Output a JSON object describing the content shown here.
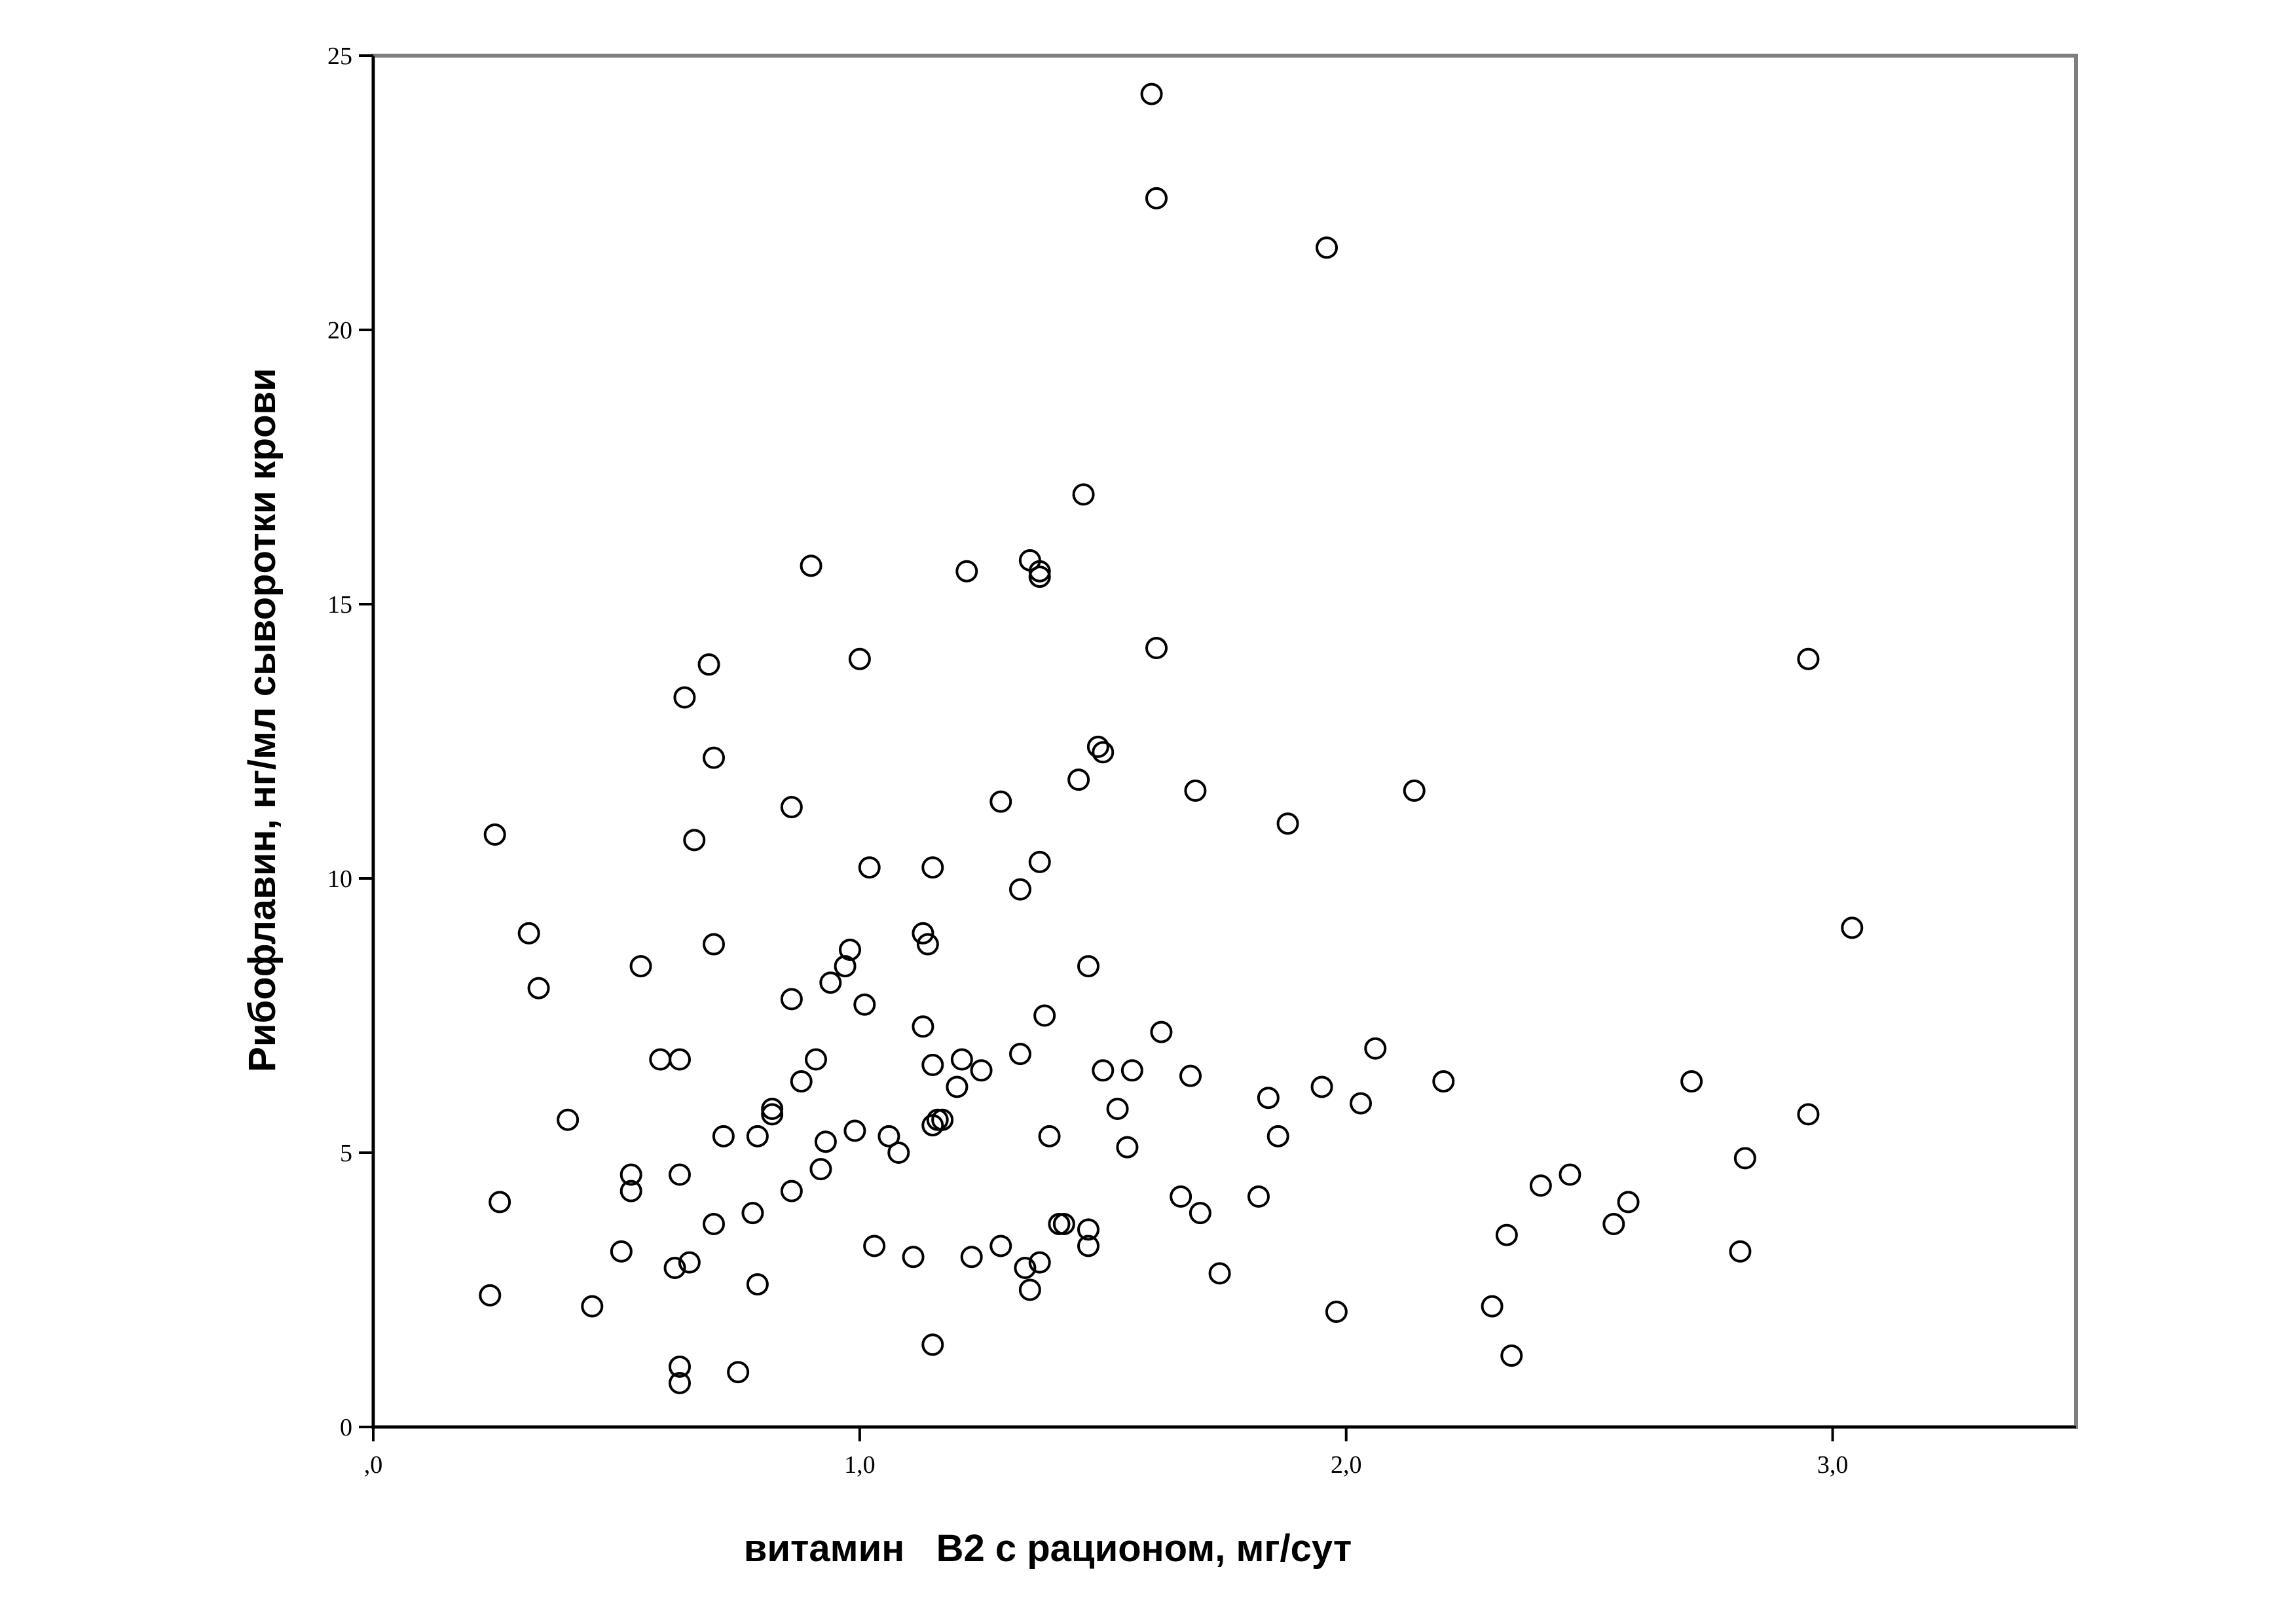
{
  "chart_data": {
    "type": "scatter",
    "title": "",
    "xlabel": "витамин   B2 с рационом, мг/сут",
    "ylabel": "Рибофлавин, нг/мл сыворотки крови",
    "xlim": [
      0,
      3.5
    ],
    "ylim": [
      0,
      25
    ],
    "xticks": [
      0,
      1,
      2,
      3
    ],
    "xtick_labels": [
      ",0",
      "1,0",
      "2,0",
      "3,0"
    ],
    "yticks": [
      0,
      5,
      10,
      15,
      20,
      25
    ],
    "ytick_labels": [
      "0",
      "5",
      "10",
      "15",
      "20",
      "25"
    ],
    "grid": false,
    "legend": "none",
    "marker": "open-circle",
    "points": [
      [
        1.6,
        24.3
      ],
      [
        1.61,
        22.4
      ],
      [
        1.96,
        21.5
      ],
      [
        1.46,
        17.0
      ],
      [
        0.9,
        15.7
      ],
      [
        1.22,
        15.6
      ],
      [
        1.35,
        15.8
      ],
      [
        1.37,
        15.6
      ],
      [
        1.37,
        15.5
      ],
      [
        1.61,
        14.2
      ],
      [
        2.95,
        14.0
      ],
      [
        1.0,
        14.0
      ],
      [
        0.69,
        13.9
      ],
      [
        0.64,
        13.3
      ],
      [
        1.49,
        12.4
      ],
      [
        1.5,
        12.3
      ],
      [
        0.7,
        12.2
      ],
      [
        1.45,
        11.8
      ],
      [
        1.69,
        11.6
      ],
      [
        2.14,
        11.6
      ],
      [
        1.29,
        11.4
      ],
      [
        0.86,
        11.3
      ],
      [
        1.88,
        11.0
      ],
      [
        0.25,
        10.8
      ],
      [
        0.66,
        10.7
      ],
      [
        1.02,
        10.2
      ],
      [
        1.15,
        10.2
      ],
      [
        1.37,
        10.3
      ],
      [
        1.33,
        9.8
      ],
      [
        3.04,
        9.1
      ],
      [
        0.32,
        9.0
      ],
      [
        1.13,
        9.0
      ],
      [
        1.14,
        8.8
      ],
      [
        0.7,
        8.8
      ],
      [
        0.98,
        8.7
      ],
      [
        0.97,
        8.4
      ],
      [
        0.55,
        8.4
      ],
      [
        1.47,
        8.4
      ],
      [
        0.94,
        8.1
      ],
      [
        0.34,
        8.0
      ],
      [
        0.86,
        7.8
      ],
      [
        1.01,
        7.7
      ],
      [
        1.38,
        7.5
      ],
      [
        1.13,
        7.3
      ],
      [
        1.62,
        7.2
      ],
      [
        2.06,
        6.9
      ],
      [
        0.59,
        6.7
      ],
      [
        0.63,
        6.7
      ],
      [
        0.91,
        6.7
      ],
      [
        1.21,
        6.7
      ],
      [
        1.33,
        6.8
      ],
      [
        1.15,
        6.6
      ],
      [
        1.25,
        6.5
      ],
      [
        1.5,
        6.5
      ],
      [
        1.56,
        6.5
      ],
      [
        1.68,
        6.4
      ],
      [
        0.88,
        6.3
      ],
      [
        2.2,
        6.3
      ],
      [
        2.71,
        6.3
      ],
      [
        1.2,
        6.2
      ],
      [
        1.95,
        6.2
      ],
      [
        1.84,
        6.0
      ],
      [
        2.03,
        5.9
      ],
      [
        0.82,
        5.8
      ],
      [
        0.82,
        5.7
      ],
      [
        1.53,
        5.8
      ],
      [
        2.95,
        5.7
      ],
      [
        0.4,
        5.6
      ],
      [
        1.17,
        5.6
      ],
      [
        1.15,
        5.5
      ],
      [
        1.16,
        5.6
      ],
      [
        0.99,
        5.4
      ],
      [
        0.72,
        5.3
      ],
      [
        0.79,
        5.3
      ],
      [
        1.06,
        5.3
      ],
      [
        1.39,
        5.3
      ],
      [
        1.86,
        5.3
      ],
      [
        0.93,
        5.2
      ],
      [
        1.55,
        5.1
      ],
      [
        1.08,
        5.0
      ],
      [
        2.82,
        4.9
      ],
      [
        0.92,
        4.7
      ],
      [
        0.53,
        4.6
      ],
      [
        0.63,
        4.6
      ],
      [
        2.46,
        4.6
      ],
      [
        2.4,
        4.4
      ],
      [
        0.53,
        4.3
      ],
      [
        0.86,
        4.3
      ],
      [
        1.66,
        4.2
      ],
      [
        1.82,
        4.2
      ],
      [
        0.26,
        4.1
      ],
      [
        2.58,
        4.1
      ],
      [
        0.78,
        3.9
      ],
      [
        1.7,
        3.9
      ],
      [
        0.7,
        3.7
      ],
      [
        1.41,
        3.7
      ],
      [
        1.42,
        3.7
      ],
      [
        2.55,
        3.7
      ],
      [
        1.47,
        3.6
      ],
      [
        2.33,
        3.5
      ],
      [
        1.03,
        3.3
      ],
      [
        1.29,
        3.3
      ],
      [
        1.47,
        3.3
      ],
      [
        0.51,
        3.2
      ],
      [
        2.81,
        3.2
      ],
      [
        1.11,
        3.1
      ],
      [
        1.23,
        3.1
      ],
      [
        0.65,
        3.0
      ],
      [
        1.37,
        3.0
      ],
      [
        0.62,
        2.9
      ],
      [
        1.34,
        2.9
      ],
      [
        1.74,
        2.8
      ],
      [
        0.79,
        2.6
      ],
      [
        1.35,
        2.5
      ],
      [
        0.24,
        2.4
      ],
      [
        0.45,
        2.2
      ],
      [
        2.3,
        2.2
      ],
      [
        1.98,
        2.1
      ],
      [
        1.15,
        1.5
      ],
      [
        2.34,
        1.3
      ],
      [
        0.63,
        1.1
      ],
      [
        0.75,
        1.0
      ],
      [
        0.63,
        0.8
      ]
    ]
  }
}
